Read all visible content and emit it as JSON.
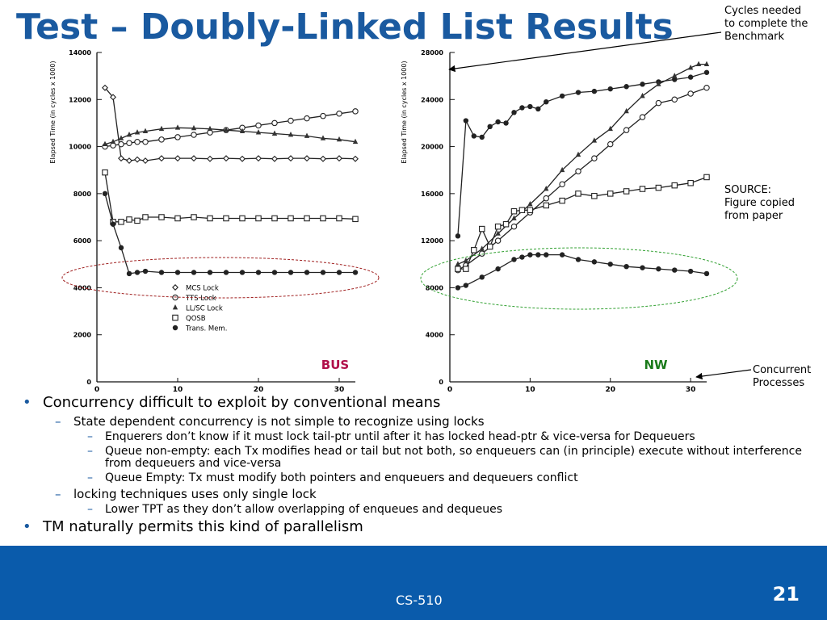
{
  "slide": {
    "title": "Test – Doubly-Linked List Results",
    "notes": {
      "cycles": [
        "Cycles needed",
        "to complete the",
        "Benchmark"
      ],
      "source": [
        "SOURCE:",
        "Figure copied",
        "from paper"
      ],
      "concurrent": [
        "Concurrent",
        "Processes"
      ]
    },
    "bullets": [
      {
        "level": 1,
        "text": "Concurrency difficult to exploit by conventional means"
      },
      {
        "level": 2,
        "text": "State dependent concurrency is not simple to recognize using locks"
      },
      {
        "level": 3,
        "text": "Enquerers don’t know if it must lock tail-ptr until after it has locked head-ptr & vice-versa for Dequeuers"
      },
      {
        "level": 3,
        "text": "Queue non-empty: each Tx modifies head or tail but not both, so enqueuers can (in principle) execute without interference from dequeuers and vice-versa"
      },
      {
        "level": 3,
        "text": "Queue Empty: Tx must modify both pointers and enqueuers and dequeuers conflict"
      },
      {
        "level": 2,
        "text": "locking techniques uses only single lock"
      },
      {
        "level": 3,
        "text": "Lower TPT as they don’t allow overlapping of enqueues and dequeues"
      },
      {
        "level": 1,
        "text": "TM  naturally permits this kind of parallelism"
      }
    ],
    "footer": {
      "course": "CS-510",
      "page": "21"
    }
  },
  "colors": {
    "title": "#1a5aa0",
    "footer": "#0a5bab",
    "bus": "#b0104a",
    "nw": "#1a7a1a",
    "ellipse_left": "#a02020",
    "ellipse_right": "#30a030"
  },
  "chart_data": [
    {
      "type": "line",
      "label": "BUS",
      "ylabel": "Elapsed Time (in cycles x 1000)",
      "xlim": [
        0,
        32
      ],
      "ylim": [
        0,
        14000
      ],
      "yticks": [
        "0",
        "2000",
        "4000",
        "6000",
        "8000",
        "10000",
        "12000",
        "14000"
      ],
      "xticks": [
        "0",
        "10",
        "20",
        "30"
      ],
      "legend": [
        "MCS Lock",
        "TTS Lock",
        "LL/SC Lock",
        "QOSB",
        "Trans. Mem."
      ],
      "legend_position": "bottom-center",
      "series": [
        {
          "name": "MCS Lock",
          "marker": "diamond",
          "x": [
            1,
            2,
            3,
            4,
            5,
            6,
            8,
            10,
            12,
            14,
            16,
            18,
            20,
            22,
            24,
            26,
            28,
            30,
            32
          ],
          "y": [
            12500,
            12100,
            9500,
            9400,
            9450,
            9400,
            9500,
            9500,
            9500,
            9480,
            9500,
            9480,
            9500,
            9480,
            9500,
            9500,
            9480,
            9500,
            9480
          ]
        },
        {
          "name": "TTS Lock",
          "marker": "circle",
          "x": [
            1,
            2,
            3,
            4,
            5,
            6,
            8,
            10,
            12,
            14,
            16,
            18,
            20,
            22,
            24,
            26,
            28,
            30,
            32
          ],
          "y": [
            10000,
            10050,
            10100,
            10150,
            10200,
            10200,
            10300,
            10400,
            10500,
            10600,
            10700,
            10800,
            10900,
            11000,
            11100,
            11200,
            11300,
            11400,
            11500
          ]
        },
        {
          "name": "LL/SC Lock",
          "marker": "triangle",
          "x": [
            1,
            2,
            3,
            4,
            5,
            6,
            8,
            10,
            12,
            14,
            16,
            18,
            20,
            22,
            24,
            26,
            28,
            30,
            32
          ],
          "y": [
            10100,
            10200,
            10350,
            10500,
            10600,
            10650,
            10750,
            10800,
            10780,
            10750,
            10700,
            10650,
            10600,
            10550,
            10500,
            10450,
            10350,
            10300,
            10200
          ]
        },
        {
          "name": "QOSB",
          "marker": "square",
          "x": [
            1,
            2,
            3,
            4,
            5,
            6,
            8,
            10,
            12,
            14,
            16,
            18,
            20,
            22,
            24,
            26,
            28,
            30,
            32
          ],
          "y": [
            8900,
            6800,
            6800,
            6900,
            6850,
            7000,
            7000,
            6950,
            7000,
            6950,
            6950,
            6950,
            6950,
            6950,
            6950,
            6950,
            6950,
            6950,
            6920
          ]
        },
        {
          "name": "Trans. Mem.",
          "marker": "filled-circle",
          "x": [
            1,
            2,
            3,
            4,
            5,
            6,
            8,
            10,
            12,
            14,
            16,
            18,
            20,
            22,
            24,
            26,
            28,
            30,
            32
          ],
          "y": [
            8000,
            6700,
            5700,
            4600,
            4650,
            4700,
            4650,
            4650,
            4650,
            4650,
            4650,
            4650,
            4650,
            4650,
            4650,
            4650,
            4650,
            4650,
            4650
          ]
        }
      ]
    },
    {
      "type": "line",
      "label": "NW",
      "ylabel": "Elapsed Time (in cycles x 1000)",
      "xlim": [
        0,
        32
      ],
      "ylim": [
        0,
        28000
      ],
      "yticks": [
        "0",
        "4000",
        "8000",
        "12000",
        "16000",
        "20000",
        "24000",
        "28000"
      ],
      "xticks": [
        "0",
        "10",
        "20",
        "30"
      ],
      "series": [
        {
          "name": "MCS Lock",
          "marker": "filled-circle",
          "x": [
            1,
            2,
            3,
            4,
            5,
            6,
            7,
            8,
            9,
            10,
            11,
            12,
            14,
            16,
            18,
            20,
            22,
            24,
            26,
            28,
            30,
            32
          ],
          "y": [
            12400,
            22200,
            20900,
            20800,
            21700,
            22100,
            22000,
            22900,
            23300,
            23400,
            23200,
            23800,
            24300,
            24600,
            24700,
            24900,
            25100,
            25300,
            25500,
            25700,
            25900,
            26300
          ]
        },
        {
          "name": "TTS Lock",
          "marker": "circle",
          "x": [
            1,
            2,
            4,
            6,
            8,
            10,
            12,
            14,
            16,
            18,
            20,
            22,
            24,
            26,
            28,
            30,
            32
          ],
          "y": [
            9500,
            9900,
            10900,
            12000,
            13200,
            14400,
            15600,
            16800,
            17900,
            19000,
            20200,
            21400,
            22500,
            23700,
            24000,
            24500,
            25000
          ]
        },
        {
          "name": "LL/SC Lock",
          "marker": "triangle",
          "x": [
            1,
            2,
            4,
            6,
            8,
            10,
            12,
            14,
            16,
            18,
            20,
            22,
            24,
            26,
            28,
            30,
            31,
            32
          ],
          "y": [
            10000,
            10300,
            11300,
            12600,
            13900,
            15100,
            16400,
            18000,
            19300,
            20500,
            21500,
            23000,
            24300,
            25300,
            26000,
            26700,
            27000,
            27000
          ]
        },
        {
          "name": "QOSB",
          "marker": "square",
          "x": [
            1,
            2,
            3,
            4,
            5,
            6,
            7,
            8,
            9,
            10,
            12,
            14,
            16,
            18,
            20,
            22,
            24,
            26,
            28,
            30,
            32
          ],
          "y": [
            9600,
            9600,
            11200,
            13000,
            11500,
            13200,
            13400,
            14500,
            14600,
            14600,
            15000,
            15400,
            16000,
            15800,
            16000,
            16200,
            16400,
            16500,
            16700,
            16900,
            17400
          ]
        },
        {
          "name": "Trans. Mem.",
          "marker": "filled-circle",
          "x": [
            1,
            2,
            4,
            6,
            8,
            9,
            10,
            11,
            12,
            14,
            16,
            18,
            20,
            22,
            24,
            26,
            28,
            30,
            32
          ],
          "y": [
            8000,
            8200,
            8900,
            9600,
            10400,
            10600,
            10800,
            10800,
            10800,
            10800,
            10400,
            10200,
            10000,
            9800,
            9700,
            9600,
            9500,
            9400,
            9200
          ]
        }
      ]
    }
  ]
}
